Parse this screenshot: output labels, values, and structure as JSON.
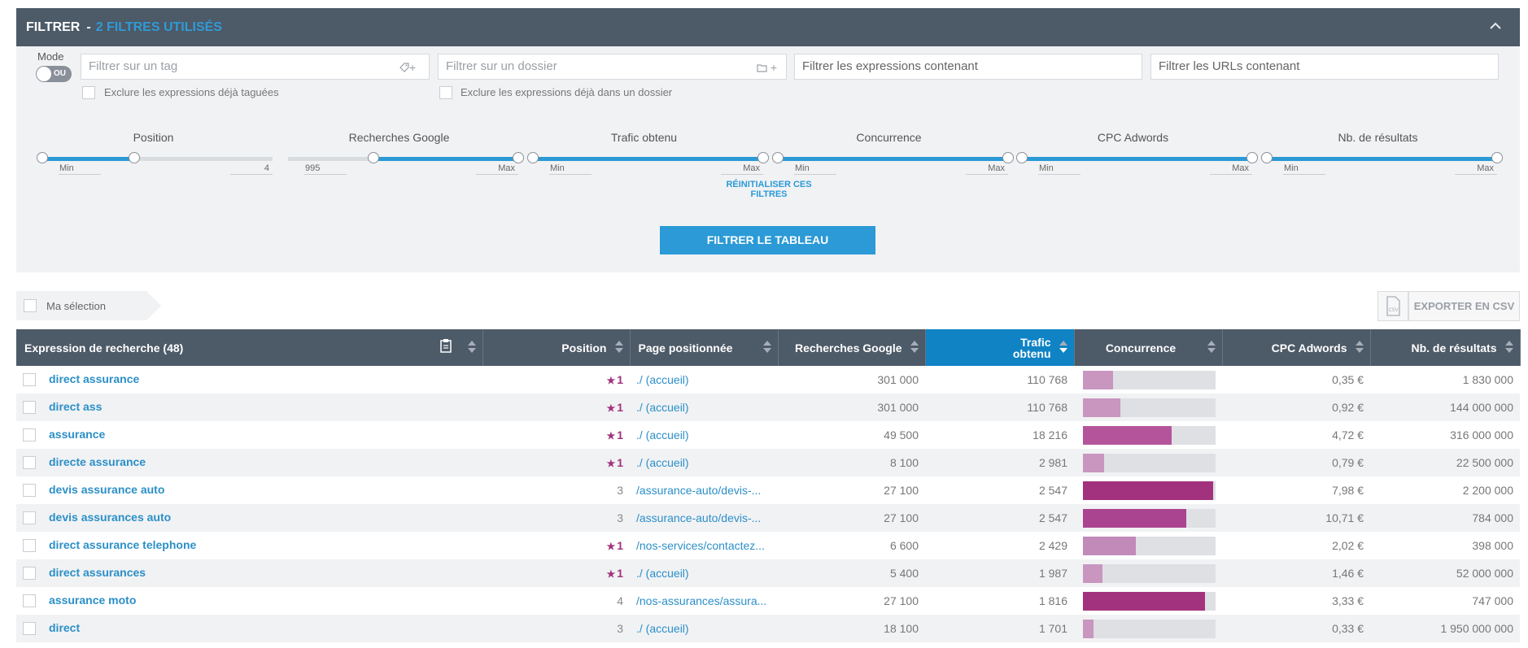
{
  "filter": {
    "title": "FILTRER",
    "sep": "-",
    "count_label": "2 FILTRES UTILISÉS",
    "mode_label": "Mode",
    "toggle_label": "OU",
    "tag_placeholder": "Filtrer sur un tag",
    "folder_placeholder": "Filtrer sur un dossier",
    "expr_value": "Filtrer les expressions contenant",
    "url_value": "Filtrer les URLs contenant",
    "tag_icon": "+",
    "folder_icon": "+",
    "exclude_tagged": "Exclure les expressions déjà taguées",
    "exclude_folder": "Exclure les expressions déjà dans un dossier",
    "reset_label": "RÉINITIALISER CES FILTRES",
    "apply_label": "FILTRER LE TABLEAU"
  },
  "sliders": [
    {
      "title": "Position",
      "min_label": "Min",
      "max_label": "4",
      "fill_start": 0,
      "fill_end": 0.4
    },
    {
      "title": "Recherches Google",
      "min_label": "995",
      "max_label": "Max",
      "fill_start": 0.37,
      "fill_end": 1
    },
    {
      "title": "Trafic obtenu",
      "min_label": "Min",
      "max_label": "Max",
      "fill_start": 0,
      "fill_end": 1
    },
    {
      "title": "Concurrence",
      "min_label": "Min",
      "max_label": "Max",
      "fill_start": 0,
      "fill_end": 1
    },
    {
      "title": "CPC Adwords",
      "min_label": "Min",
      "max_label": "Max",
      "fill_start": 0,
      "fill_end": 1
    },
    {
      "title": "Nb. de résultats",
      "min_label": "Min",
      "max_label": "Max",
      "fill_start": 0,
      "fill_end": 1
    }
  ],
  "selection": {
    "label": "Ma sélection"
  },
  "export": {
    "label": "EXPORTER EN CSV",
    "icon_text": "CSV"
  },
  "table": {
    "headers": {
      "keyword": "Expression de recherche (48)",
      "position": "Position",
      "page": "Page positionnée",
      "searches": "Recherches Google",
      "traffic_1": "Trafic",
      "traffic_2": "obtenu",
      "competition": "Concurrence",
      "cpc": "CPC Adwords",
      "results": "Nb. de résultats"
    },
    "rows": [
      {
        "keyword": "direct assurance",
        "star": "★",
        "position": "1",
        "page": "./ (accueil)",
        "searches": "301 000",
        "traffic": "110 768",
        "competition": 0.23,
        "comp_color": "#c896bf",
        "cpc": "0,35 €",
        "results": "1 830 000"
      },
      {
        "keyword": "direct ass",
        "star": "★",
        "position": "1",
        "page": "./ (accueil)",
        "searches": "301 000",
        "traffic": "110 768",
        "competition": 0.28,
        "comp_color": "#c896bf",
        "cpc": "0,92 €",
        "results": "144 000 000"
      },
      {
        "keyword": "assurance",
        "star": "★",
        "position": "1",
        "page": "./ (accueil)",
        "searches": "49 500",
        "traffic": "18 216",
        "competition": 0.67,
        "comp_color": "#b4559c",
        "cpc": "4,72 €",
        "results": "316 000 000"
      },
      {
        "keyword": "directe assurance",
        "star": "★",
        "position": "1",
        "page": "./ (accueil)",
        "searches": "8 100",
        "traffic": "2 981",
        "competition": 0.16,
        "comp_color": "#c896bf",
        "cpc": "0,79 €",
        "results": "22 500 000"
      },
      {
        "keyword": "devis assurance auto",
        "star": "",
        "position": "3",
        "page": "/assurance-auto/devis-...",
        "searches": "27 100",
        "traffic": "2 547",
        "competition": 0.98,
        "comp_color": "#a3327e",
        "cpc": "7,98 €",
        "results": "2 200 000"
      },
      {
        "keyword": "devis assurances auto",
        "star": "",
        "position": "3",
        "page": "/assurance-auto/devis-...",
        "searches": "27 100",
        "traffic": "2 547",
        "competition": 0.78,
        "comp_color": "#aa4490",
        "cpc": "10,71 €",
        "results": "784 000"
      },
      {
        "keyword": "direct assurance telephone",
        "star": "★",
        "position": "1",
        "page": "/nos-services/contactez...",
        "searches": "6 600",
        "traffic": "2 429",
        "competition": 0.4,
        "comp_color": "#c28ab9",
        "cpc": "2,02 €",
        "results": "398 000"
      },
      {
        "keyword": "direct assurances",
        "star": "★",
        "position": "1",
        "page": "./ (accueil)",
        "searches": "5 400",
        "traffic": "1 987",
        "competition": 0.15,
        "comp_color": "#c896bf",
        "cpc": "1,46 €",
        "results": "52 000 000"
      },
      {
        "keyword": "assurance moto",
        "star": "",
        "position": "4",
        "page": "/nos-assurances/assura...",
        "searches": "27 100",
        "traffic": "1 816",
        "competition": 0.92,
        "comp_color": "#a3327e",
        "cpc": "3,33 €",
        "results": "747 000"
      },
      {
        "keyword": "direct",
        "star": "",
        "position": "3",
        "page": "./ (accueil)",
        "searches": "18 100",
        "traffic": "1 701",
        "competition": 0.08,
        "comp_color": "#c896bf",
        "cpc": "0,33 €",
        "results": "1 950 000 000"
      }
    ]
  }
}
